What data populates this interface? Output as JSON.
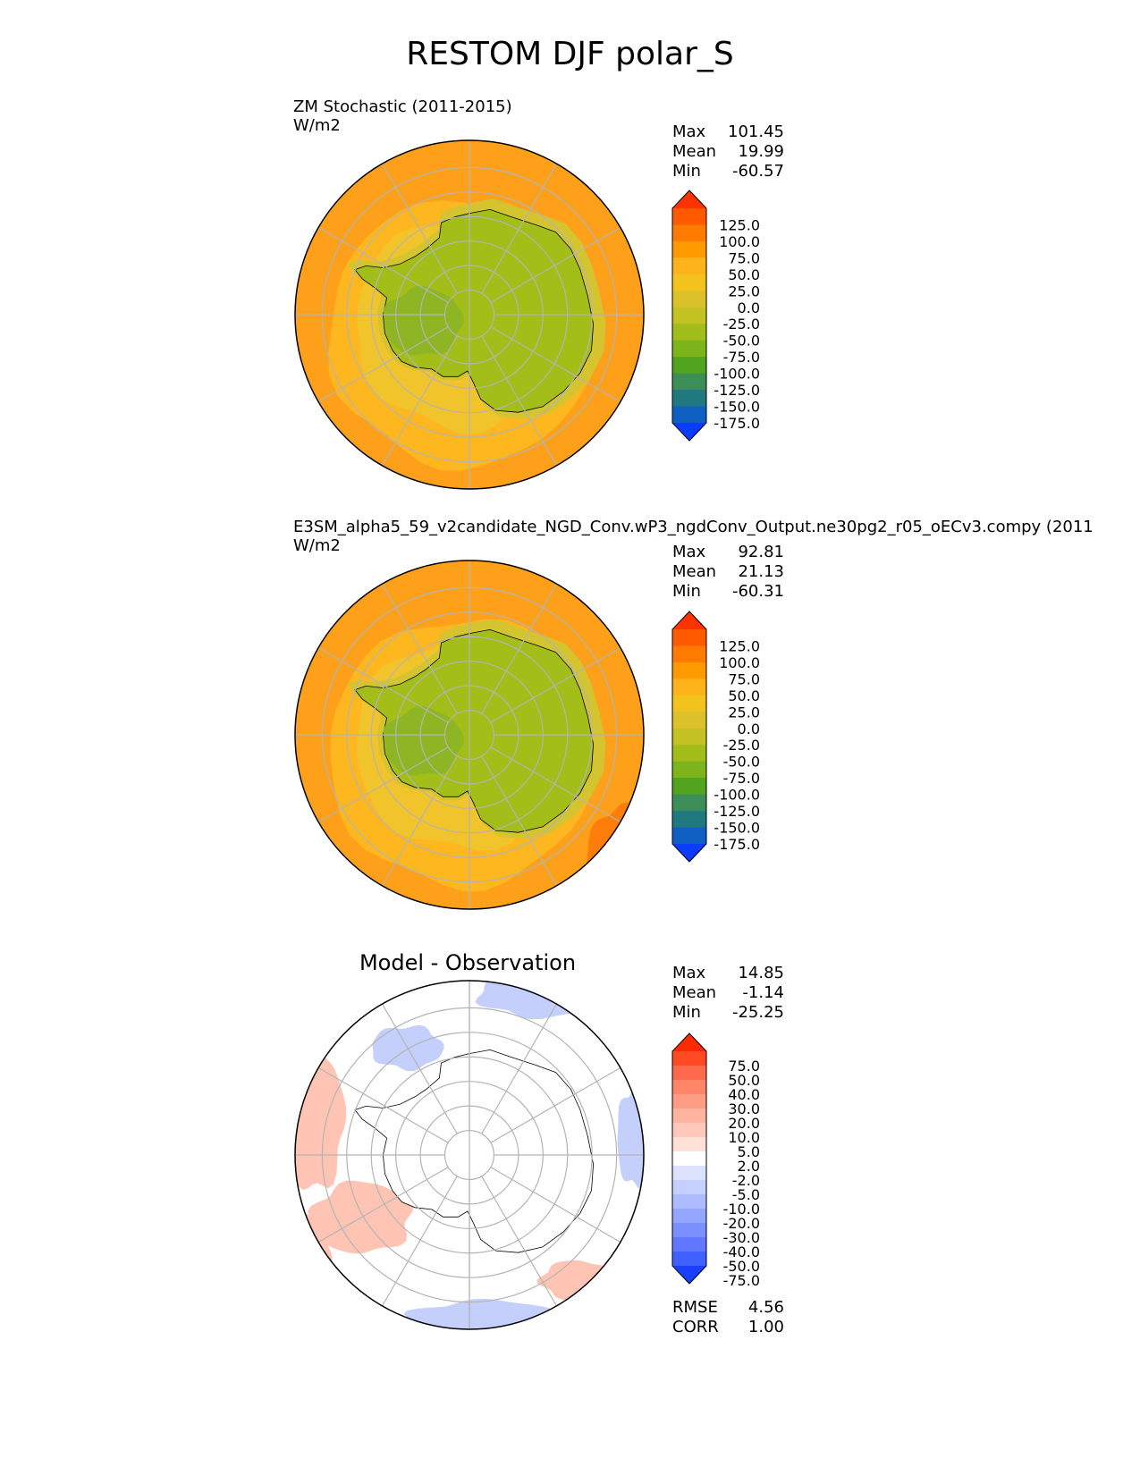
{
  "figure": {
    "title": "RESTOM DJF polar_S"
  },
  "chart_data": [
    {
      "type": "heatmap",
      "projection": "south polar stereographic",
      "title": "ZM Stochastic (2011-2015)",
      "units": "W/m2",
      "stats": {
        "max": "101.45",
        "mean": "19.99",
        "min": "-60.57"
      },
      "stat_labels": {
        "max": "Max",
        "mean": "Mean",
        "min": "Min"
      },
      "colorbar_ticks": [
        "125.0",
        "100.0",
        "75.0",
        "50.0",
        "25.0",
        "0.0",
        "-25.0",
        "-50.0",
        "-75.0",
        "-100.0",
        "-125.0",
        "-150.0",
        "-175.0"
      ],
      "colorbar_colors": [
        "#ff3300",
        "#ff5a00",
        "#ff7a00",
        "#ff9a00",
        "#ffb31a",
        "#f2c21d",
        "#dcc12a",
        "#c4c223",
        "#a2bd19",
        "#7eb41b",
        "#52a41f",
        "#3d8e56",
        "#21787f",
        "#1060c4",
        "#0a3cff"
      ],
      "field_colors": {
        "ocean_outer": "#ffa01a",
        "ocean_ring": "#ffb71f",
        "sea_ice": "#f0c42a",
        "coast": "#d4c430",
        "land": "#a3bd19",
        "peninsula": "#8eb524"
      }
    },
    {
      "type": "heatmap",
      "projection": "south polar stereographic",
      "title": "E3SM_alpha5_59_v2candidate_NGD_Conv.wP3_ngdConv_Output.ne30pg2_r05_oECv3.compy (2011",
      "units": "W/m2",
      "stats": {
        "max": "92.81",
        "mean": "21.13",
        "min": "-60.31"
      },
      "stat_labels": {
        "max": "Max",
        "mean": "Mean",
        "min": "Min"
      },
      "colorbar_ticks": [
        "125.0",
        "100.0",
        "75.0",
        "50.0",
        "25.0",
        "0.0",
        "-25.0",
        "-50.0",
        "-75.0",
        "-100.0",
        "-125.0",
        "-150.0",
        "-175.0"
      ],
      "colorbar_colors": [
        "#ff3300",
        "#ff5a00",
        "#ff7a00",
        "#ff9a00",
        "#ffb31a",
        "#f2c21d",
        "#dcc12a",
        "#c4c223",
        "#a2bd19",
        "#7eb41b",
        "#52a41f",
        "#3d8e56",
        "#21787f",
        "#1060c4",
        "#0a3cff"
      ],
      "field_colors": {
        "ocean_outer": "#ffa01a",
        "ocean_ring": "#ffb71f",
        "sea_ice": "#f0c42a",
        "coast": "#d4c430",
        "land": "#a3bd19",
        "peninsula": "#8eb524"
      }
    },
    {
      "type": "heatmap",
      "projection": "south polar stereographic",
      "title": "Model - Observation",
      "stats": {
        "max": "14.85",
        "mean": "-1.14",
        "min": "-25.25"
      },
      "stat_labels": {
        "max": "Max",
        "mean": "Mean",
        "min": "Min"
      },
      "metrics": {
        "rmse": "4.56",
        "corr": "1.00"
      },
      "metric_labels": {
        "rmse": "RMSE",
        "corr": "CORR"
      },
      "colorbar_ticks": [
        "75.0",
        "50.0",
        "40.0",
        "30.0",
        "20.0",
        "10.0",
        "5.0",
        "2.0",
        "-2.0",
        "-5.0",
        "-10.0",
        "-20.0",
        "-30.0",
        "-40.0",
        "-50.0",
        "-75.0"
      ],
      "colorbar_colors": [
        "#ff2a00",
        "#ff4a25",
        "#ff6a4c",
        "#ff8468",
        "#ff9c84",
        "#ffb4a0",
        "#ffc8ba",
        "#ffe0d6",
        "#ffffff",
        "#dde3ff",
        "#c6d0ff",
        "#aebcff",
        "#95a6ff",
        "#7b90ff",
        "#5f78ff",
        "#4060ff",
        "#1a40ff"
      ],
      "field_colors": {
        "background": "#ffffff",
        "positive": "#ffc4b4",
        "negative": "#c4cffb"
      }
    }
  ]
}
